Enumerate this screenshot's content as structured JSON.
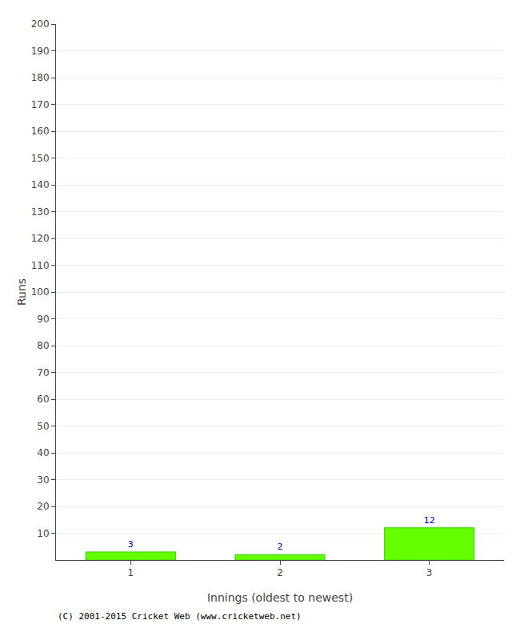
{
  "chart_data": {
    "type": "bar",
    "categories": [
      "1",
      "2",
      "3"
    ],
    "values": [
      3,
      2,
      12
    ],
    "color": "#66ff00",
    "xlabel": "Innings (oldest to newest)",
    "ylabel": "Runs",
    "ylim": [
      0,
      200
    ],
    "yticks": [
      10,
      20,
      30,
      40,
      50,
      60,
      70,
      80,
      90,
      100,
      110,
      120,
      130,
      140,
      150,
      160,
      170,
      180,
      190,
      200
    ],
    "grid": true,
    "data_labels": true,
    "annotations": [
      "(C) 2001-2015 Cricket Web (www.cricketweb.net)"
    ]
  }
}
